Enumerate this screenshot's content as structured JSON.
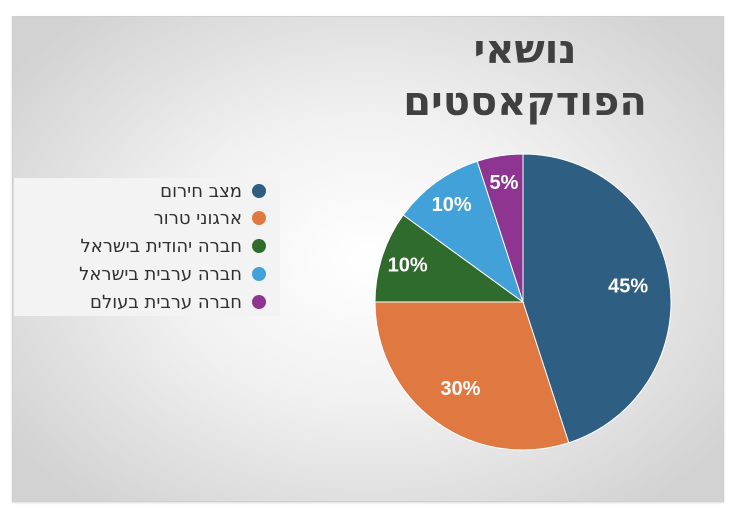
{
  "chart_data": {
    "type": "pie",
    "title": "נושאי הפודקאסטים",
    "categories": [
      "מצב חירום",
      "ארגוני טרור",
      "חברה יהודית בישראל",
      "חברה ערבית בישראל",
      "חברה ערבית בעולם"
    ],
    "values": [
      45,
      30,
      10,
      10,
      5
    ],
    "data_labels": [
      "45%",
      "30%",
      "10%",
      "10%",
      "5%"
    ],
    "colors": [
      "#2e5f82",
      "#df7841",
      "#306b2e",
      "#42a1d8",
      "#8e3591"
    ],
    "legend_position": "left"
  }
}
